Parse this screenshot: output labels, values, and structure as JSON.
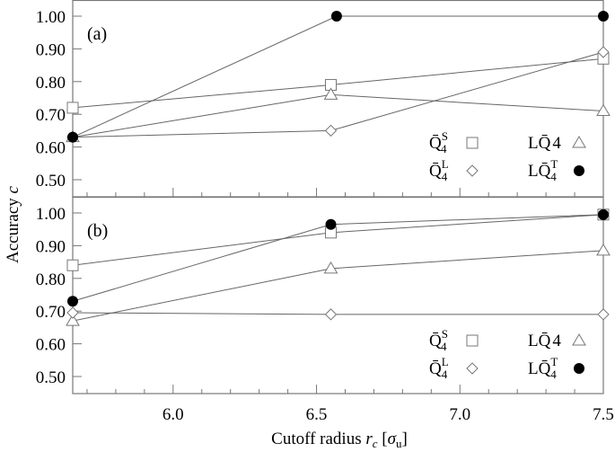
{
  "chart_data": [
    {
      "type": "line",
      "panel": "(a)",
      "xlabel": "Cutoff radius r_c [σ_u]",
      "ylabel": "Accuracy c",
      "xlim": [
        5.65,
        7.5
      ],
      "ylim": [
        0.45,
        1.05
      ],
      "x_ticks": [
        "6.0",
        "6.5",
        "7.0",
        "7.5"
      ],
      "y_ticks": [
        "0.50",
        "0.60",
        "0.70",
        "0.80",
        "0.90",
        "1.00"
      ],
      "grid": false,
      "legend_position": "lower right",
      "series": [
        {
          "name": "Q̄4^S",
          "marker": "square-open",
          "x": [
            5.65,
            6.55,
            7.5
          ],
          "values": [
            0.72,
            0.79,
            0.87
          ]
        },
        {
          "name": "LQ̄4",
          "marker": "triangle-open",
          "x": [
            5.65,
            6.55,
            7.5
          ],
          "values": [
            0.63,
            0.76,
            0.71
          ]
        },
        {
          "name": "Q̄4^L",
          "marker": "diamond-open",
          "x": [
            5.65,
            6.55,
            7.5
          ],
          "values": [
            0.63,
            0.65,
            0.89
          ]
        },
        {
          "name": "LQ̄4^T",
          "marker": "circle-filled",
          "x": [
            5.65,
            6.57,
            7.5
          ],
          "values": [
            0.63,
            1.0,
            1.0
          ]
        }
      ]
    },
    {
      "type": "line",
      "panel": "(b)",
      "xlabel": "Cutoff radius r_c [σ_u]",
      "ylabel": "Accuracy c",
      "xlim": [
        5.65,
        7.5
      ],
      "ylim": [
        0.45,
        1.05
      ],
      "x_ticks": [
        "6.0",
        "6.5",
        "7.0",
        "7.5"
      ],
      "y_ticks": [
        "0.50",
        "0.60",
        "0.70",
        "0.80",
        "0.90",
        "1.00"
      ],
      "grid": false,
      "legend_position": "lower right",
      "series": [
        {
          "name": "Q̄4^S",
          "marker": "square-open",
          "x": [
            5.65,
            6.55,
            7.5
          ],
          "values": [
            0.84,
            0.94,
            0.995
          ]
        },
        {
          "name": "LQ̄4",
          "marker": "triangle-open",
          "x": [
            5.65,
            6.55,
            7.5
          ],
          "values": [
            0.67,
            0.83,
            0.885
          ]
        },
        {
          "name": "Q̄4^L",
          "marker": "diamond-open",
          "x": [
            5.65,
            6.55,
            7.5
          ],
          "values": [
            0.695,
            0.69,
            0.69
          ]
        },
        {
          "name": "LQ̄4^T",
          "marker": "circle-filled",
          "x": [
            5.65,
            6.55,
            7.5
          ],
          "values": [
            0.73,
            0.965,
            0.995
          ]
        }
      ]
    }
  ],
  "labels": {
    "ylabel_main": "Accuracy ",
    "ylabel_var": "c",
    "xlabel_main": "Cutoff radius ",
    "xlabel_var": "r",
    "xlabel_var_sub": "c",
    "xlabel_unit_open": " [",
    "xlabel_unit": "σ",
    "xlabel_unit_sub": "u",
    "xlabel_unit_close": "]",
    "panel_a": "(a)",
    "panel_b": "(b)"
  },
  "legend": [
    {
      "base": "Q̄",
      "sup": "S",
      "sub": "4",
      "marker": "square-open"
    },
    {
      "base": "LQ̄",
      "sup": "",
      "sub": "4",
      "marker": "triangle-open"
    },
    {
      "base": "Q̄",
      "sup": "L",
      "sub": "4",
      "marker": "diamond-open"
    },
    {
      "base": "LQ̄",
      "sup": "T",
      "sub": "4",
      "marker": "circle-filled"
    }
  ],
  "colors": {
    "axis": "#777777",
    "line": "#666666",
    "marker_open": "#777777",
    "marker_filled": "#000000"
  }
}
